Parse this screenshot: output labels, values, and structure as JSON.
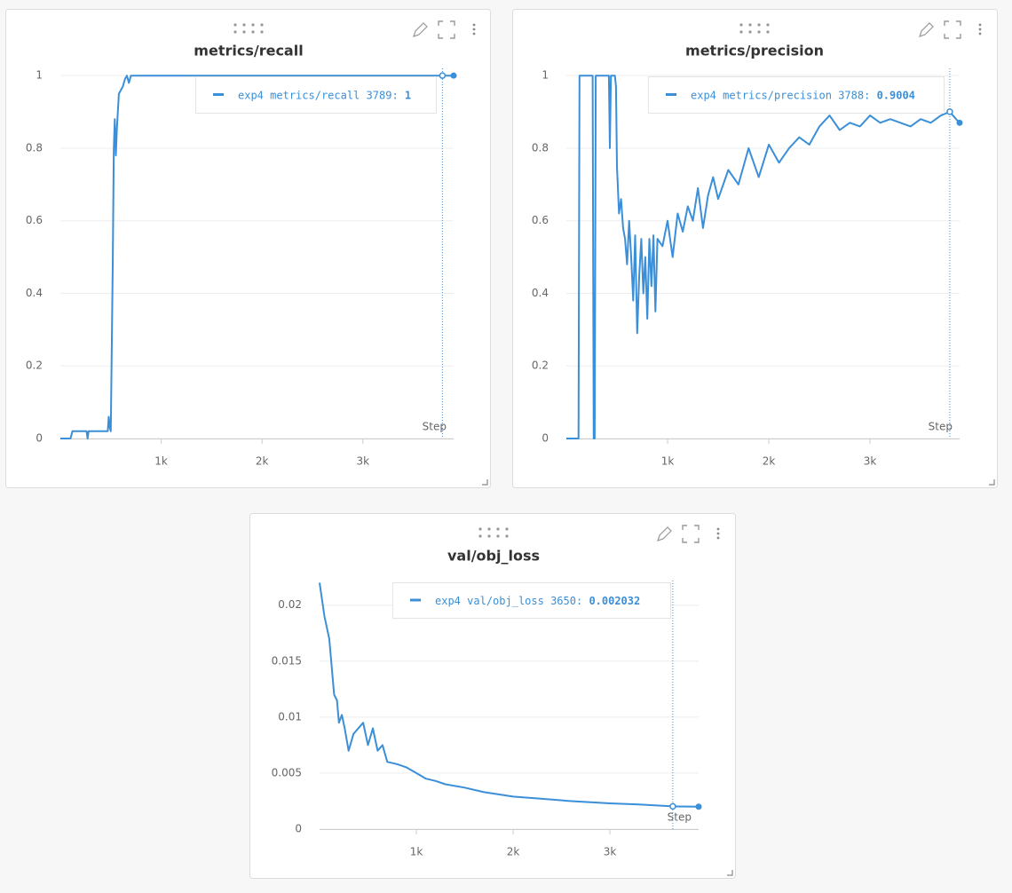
{
  "chart_data": [
    {
      "type": "line",
      "title": "metrics/recall",
      "xlabel": "Step",
      "x": [
        0,
        50,
        100,
        120,
        200,
        260,
        270,
        280,
        300,
        400,
        470,
        480,
        490,
        500,
        520,
        530,
        540,
        550,
        560,
        580,
        600,
        620,
        640,
        660,
        680,
        700,
        1000,
        1500,
        2000,
        2500,
        3000,
        3500,
        3789,
        3900
      ],
      "series": [
        {
          "name": "exp4",
          "color": "#3a8fd8",
          "values": [
            0,
            0,
            0,
            0.02,
            0.02,
            0.02,
            0,
            0.02,
            0.02,
            0.02,
            0.02,
            0.06,
            0.03,
            0.02,
            0.5,
            0.8,
            0.88,
            0.78,
            0.85,
            0.95,
            0.96,
            0.97,
            0.99,
            1,
            0.98,
            1,
            1,
            1,
            1,
            1,
            1,
            1,
            1,
            1
          ]
        }
      ],
      "xlim": [
        0,
        3900
      ],
      "ylim": [
        0,
        1.02
      ],
      "xticks": [
        {
          "value": 1000,
          "label": "1k"
        },
        {
          "value": 2000,
          "label": "2k"
        },
        {
          "value": 3000,
          "label": "3k"
        }
      ],
      "yticks": [
        0,
        0.2,
        0.4,
        0.6,
        0.8,
        1
      ],
      "grid": true,
      "hover": {
        "series": "exp4",
        "label": "metrics/recall",
        "step": 3789,
        "value": 1
      }
    },
    {
      "type": "line",
      "title": "metrics/precision",
      "xlabel": "Step",
      "x": [
        0,
        100,
        120,
        130,
        260,
        270,
        280,
        290,
        420,
        430,
        440,
        480,
        490,
        500,
        520,
        540,
        560,
        580,
        600,
        620,
        640,
        660,
        680,
        700,
        720,
        740,
        760,
        780,
        800,
        820,
        840,
        860,
        880,
        900,
        950,
        1000,
        1050,
        1100,
        1150,
        1200,
        1250,
        1300,
        1350,
        1400,
        1450,
        1500,
        1600,
        1700,
        1800,
        1900,
        2000,
        2100,
        2200,
        2300,
        2400,
        2500,
        2600,
        2700,
        2800,
        2900,
        3000,
        3100,
        3200,
        3300,
        3400,
        3500,
        3600,
        3700,
        3788,
        3850,
        3885
      ],
      "series": [
        {
          "name": "exp4",
          "color": "#3a8fd8",
          "values": [
            0,
            0,
            0,
            1,
            1,
            0,
            0,
            1,
            1,
            0.8,
            1,
            1,
            0.97,
            0.75,
            0.62,
            0.66,
            0.58,
            0.55,
            0.48,
            0.6,
            0.5,
            0.38,
            0.56,
            0.29,
            0.45,
            0.55,
            0.4,
            0.5,
            0.33,
            0.55,
            0.42,
            0.56,
            0.35,
            0.55,
            0.53,
            0.6,
            0.5,
            0.62,
            0.57,
            0.64,
            0.6,
            0.69,
            0.58,
            0.67,
            0.72,
            0.66,
            0.74,
            0.7,
            0.8,
            0.72,
            0.81,
            0.76,
            0.8,
            0.83,
            0.81,
            0.86,
            0.89,
            0.85,
            0.87,
            0.86,
            0.89,
            0.87,
            0.88,
            0.87,
            0.86,
            0.88,
            0.87,
            0.89,
            0.9004,
            0.88,
            0.87
          ]
        }
      ],
      "xlim": [
        0,
        3885
      ],
      "ylim": [
        0,
        1.02
      ],
      "xticks": [
        {
          "value": 1000,
          "label": "1k"
        },
        {
          "value": 2000,
          "label": "2k"
        },
        {
          "value": 3000,
          "label": "3k"
        }
      ],
      "yticks": [
        0,
        0.2,
        0.4,
        0.6,
        0.8,
        1
      ],
      "grid": true,
      "hover": {
        "series": "exp4",
        "label": "metrics/precision",
        "step": 3788,
        "value": 0.9004
      }
    },
    {
      "type": "line",
      "title": "val/obj_loss",
      "xlabel": "Step",
      "x": [
        0,
        50,
        100,
        150,
        180,
        200,
        230,
        260,
        300,
        350,
        400,
        450,
        500,
        550,
        600,
        650,
        700,
        800,
        900,
        1000,
        1100,
        1200,
        1300,
        1500,
        1700,
        2000,
        2300,
        2600,
        3000,
        3300,
        3650,
        3917
      ],
      "series": [
        {
          "name": "exp4",
          "color": "#3a8fd8",
          "values": [
            0.022,
            0.019,
            0.017,
            0.012,
            0.0115,
            0.0095,
            0.0102,
            0.009,
            0.007,
            0.0085,
            0.009,
            0.0095,
            0.0075,
            0.009,
            0.007,
            0.0075,
            0.006,
            0.0058,
            0.0055,
            0.005,
            0.0045,
            0.0043,
            0.004,
            0.0037,
            0.0033,
            0.0029,
            0.0027,
            0.0025,
            0.0023,
            0.0022,
            0.002032,
            0.002
          ]
        }
      ],
      "xlim": [
        0,
        3917
      ],
      "ylim": [
        0,
        0.0222
      ],
      "xticks": [
        {
          "value": 1000,
          "label": "1k"
        },
        {
          "value": 2000,
          "label": "2k"
        },
        {
          "value": 3000,
          "label": "3k"
        }
      ],
      "yticks": [
        0,
        0.005,
        0.01,
        0.015,
        0.02
      ],
      "grid": true,
      "hover": {
        "series": "exp4",
        "label": "val/obj_loss",
        "step": 3650,
        "value": 0.002032
      }
    }
  ]
}
